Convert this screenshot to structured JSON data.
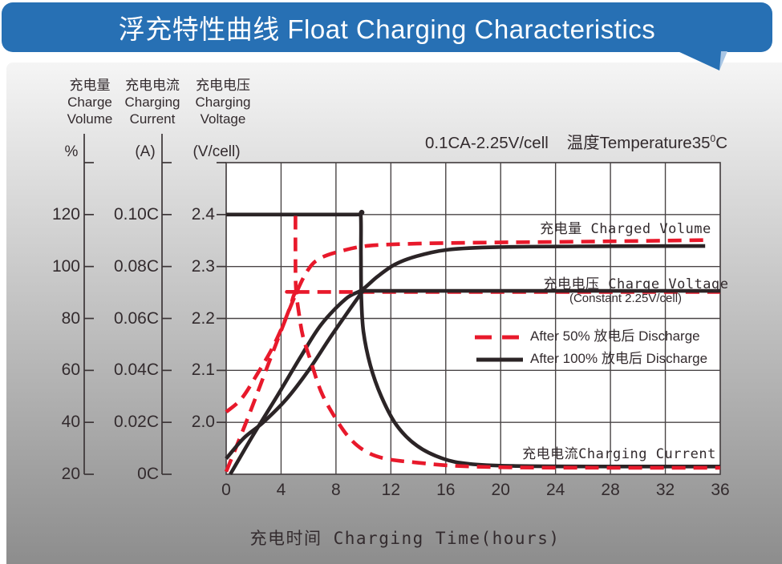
{
  "header": {
    "title": "浮充特性曲线 Float Charging Characteristics"
  },
  "colors": {
    "banner": "#2770b4",
    "tail_light": "#a9c6e4",
    "red": "#e8192b",
    "black": "#2b2426",
    "grid": "#4a4546",
    "axis": "#3c3537",
    "panel_top": "#f5f5f5",
    "panel_bottom": "#8d8d8d"
  },
  "axis_headers": {
    "volume": {
      "l1": "充电量",
      "l2": "Charge",
      "l3": "Volume",
      "unit": "%"
    },
    "current": {
      "l1": "充电电流",
      "l2": "Charging",
      "l3": "Current",
      "unit": "(A)"
    },
    "voltage": {
      "l1": "充电电压",
      "l2": "Charging",
      "l3": "Voltage",
      "unit": "(V/cell)"
    }
  },
  "annotation": {
    "condition": "0.1CA-2.25V/cell",
    "temp_prefix": "温度Temperature35",
    "temp_sup": "0",
    "temp_unit": "C"
  },
  "curve_labels": {
    "charged_volume": "充电量 Charged Volume",
    "charge_voltage": "充电电压 Charge Voltage",
    "constant": "(Constant 2.25V/cell)",
    "charging_current": "充电电流Charging Current"
  },
  "legend": {
    "items": [
      {
        "label": "After 50% 放电后 Discharge",
        "style": "dashed",
        "color": "#e8192b"
      },
      {
        "label": "After 100% 放电后 Discharge",
        "style": "solid",
        "color": "#2b2426"
      }
    ]
  },
  "chart_data": {
    "type": "line",
    "title": "浮充特性曲线 Float Charging Characteristics",
    "condition": "0.1CA-2.25V/cell",
    "temperature": "35°C",
    "grid": true,
    "x_axis": {
      "label": "充电时间 Charging Time(hours)",
      "min": 0,
      "max": 36,
      "ticks": [
        0,
        4,
        8,
        12,
        16,
        20,
        24,
        28,
        32,
        36
      ]
    },
    "y_axes": {
      "percent": {
        "name": "充电量 Charge Volume",
        "unit": "%",
        "min": 20,
        "max": 140,
        "ticks": [
          120,
          100,
          80,
          60,
          40,
          20
        ],
        "tick_labels": [
          "120",
          "100",
          "80",
          "60",
          "40",
          "20"
        ]
      },
      "current": {
        "name": "充电电流 Charging Current",
        "unit": "A",
        "min": 0,
        "max": 0.12,
        "ticks": [
          0.1,
          0.08,
          0.06,
          0.04,
          0.02,
          0
        ],
        "tick_labels": [
          "0.10C",
          "0.08C",
          "0.06C",
          "0.04C",
          "0.02C",
          "0C"
        ]
      },
      "voltage": {
        "name": "充电电压 Charging Voltage",
        "unit": "V/cell",
        "min": 1.9,
        "max": 2.5,
        "ticks": [
          2.4,
          2.3,
          2.2,
          2.1,
          2.0
        ],
        "tick_labels": [
          "2.4",
          "2.3",
          "2.2",
          "2.1",
          "2.0"
        ]
      }
    },
    "series": [
      {
        "name": "charged-volume-after-50-discharge",
        "axis": "percent",
        "style": "dashed",
        "color": "#e8192b",
        "points": [
          [
            0,
            21
          ],
          [
            1.6,
            42
          ],
          [
            3.4,
            67
          ],
          [
            5.0,
            88.5
          ],
          [
            6.0,
            99
          ],
          [
            6.9,
            103.3
          ],
          [
            8.4,
            106
          ],
          [
            10.4,
            108
          ],
          [
            13.9,
            108.8
          ],
          [
            18.6,
            109.2
          ],
          [
            28,
            109.7
          ],
          [
            34.9,
            110.2
          ]
        ]
      },
      {
        "name": "charged-volume-after-100-discharge",
        "axis": "percent",
        "style": "solid",
        "color": "#2b2426",
        "points": [
          [
            0.3,
            20
          ],
          [
            1.9,
            34.5
          ],
          [
            3.7,
            50
          ],
          [
            5.4,
            65
          ],
          [
            6.9,
            77.5
          ],
          [
            8.7,
            87.5
          ],
          [
            9.9,
            91
          ],
          [
            11,
            96
          ],
          [
            12.3,
            100.8
          ],
          [
            13.9,
            104
          ],
          [
            16.2,
            106.5
          ],
          [
            19.8,
            107.5
          ],
          [
            27,
            107.8
          ],
          [
            34.9,
            107.9
          ]
        ]
      },
      {
        "name": "charge-voltage-after-50-discharge",
        "axis": "voltage",
        "style": "dashed",
        "color": "#e8192b",
        "points": [
          [
            0,
            2.02
          ],
          [
            1.1,
            2.045
          ],
          [
            2.2,
            2.09
          ],
          [
            3.3,
            2.14
          ],
          [
            4.1,
            2.185
          ],
          [
            4.7,
            2.225
          ],
          [
            5.0,
            2.248
          ],
          [
            5.6,
            2.251
          ],
          [
            7,
            2.251
          ],
          [
            36,
            2.251
          ]
        ]
      },
      {
        "name": "charge-voltage-after-100-discharge",
        "axis": "voltage",
        "style": "solid",
        "color": "#2b2426",
        "points": [
          [
            0,
            1.93
          ],
          [
            1.3,
            1.97
          ],
          [
            2.7,
            2.0
          ],
          [
            4.4,
            2.045
          ],
          [
            6.0,
            2.1
          ],
          [
            7.5,
            2.16
          ],
          [
            8.8,
            2.21
          ],
          [
            9.6,
            2.24
          ],
          [
            9.95,
            2.252
          ],
          [
            10.6,
            2.253
          ],
          [
            12,
            2.253
          ],
          [
            36,
            2.253
          ]
        ]
      },
      {
        "name": "charging-current-after-100-discharge",
        "axis": "current",
        "style": "solid",
        "color": "#2b2426",
        "points": [
          [
            0,
            0.1
          ],
          [
            5,
            0.1
          ],
          [
            9.5,
            0.1
          ],
          [
            9.8,
            0.1
          ],
          [
            9.82,
            0.085
          ],
          [
            9.85,
            0.068
          ],
          [
            10.0,
            0.055
          ],
          [
            10.5,
            0.042
          ],
          [
            11.3,
            0.03
          ],
          [
            12.4,
            0.019
          ],
          [
            13.9,
            0.011
          ],
          [
            15.8,
            0.006
          ],
          [
            17.7,
            0.004
          ],
          [
            20.9,
            0.0032
          ],
          [
            28,
            0.003
          ],
          [
            36,
            0.003
          ]
        ]
      },
      {
        "name": "charging-current-after-50-discharge",
        "axis": "current",
        "style": "dashed",
        "color": "#e8192b",
        "points": [
          [
            5.05,
            0.0995
          ],
          [
            5.05,
            0.085
          ],
          [
            5.08,
            0.072
          ],
          [
            5.3,
            0.062
          ],
          [
            5.6,
            0.053
          ],
          [
            6.2,
            0.043
          ],
          [
            6.9,
            0.032
          ],
          [
            7.8,
            0.023
          ],
          [
            8.9,
            0.0145
          ],
          [
            10.1,
            0.009
          ],
          [
            11.6,
            0.006
          ],
          [
            13.9,
            0.0045
          ],
          [
            16.8,
            0.0032
          ],
          [
            21.5,
            0.0026
          ],
          [
            28,
            0.0025
          ],
          [
            36,
            0.0025
          ]
        ]
      }
    ]
  }
}
